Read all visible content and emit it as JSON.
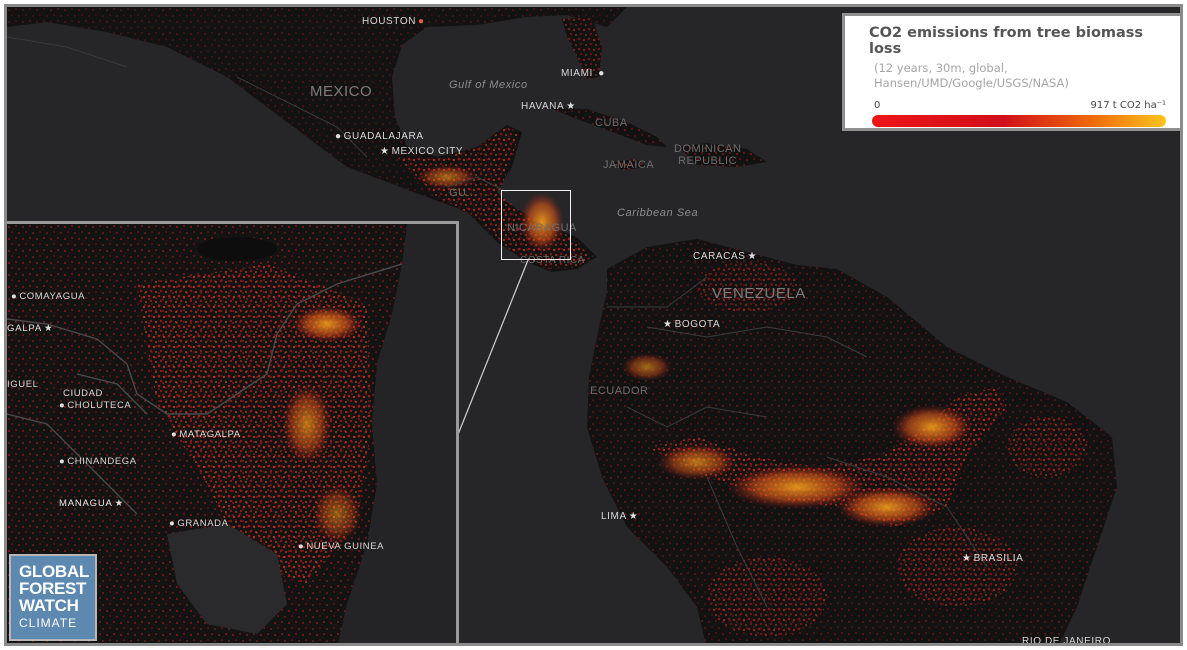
{
  "legend": {
    "title": "CO2 emissions from tree biomass loss",
    "subtitle_line1": "(12 years, 30m, global,",
    "subtitle_line2": "Hansen/UMD/Google/USGS/NASA)",
    "scale_min": "0",
    "scale_max": "917 t CO2 ha⁻¹",
    "gradient_colors": [
      "#ee1418",
      "#d0101a",
      "#ef6a0c",
      "#fbc41c"
    ]
  },
  "logo": {
    "line1": "GLOBAL",
    "line2": "FOREST",
    "line3": "WATCH",
    "line4": "CLIMATE",
    "color": "#5d88b0"
  },
  "map": {
    "background_color": "#262628",
    "land_color": "#121213",
    "countries": {
      "mexico": "MEXICO",
      "cuba": "CUBA",
      "jamaica": "JAMAICA",
      "dominican_republic_1": "DOMINICAN",
      "dominican_republic_2": "REPUBLIC",
      "nicaragua": "NICARAGUA",
      "costa_rica": "COSTA RICA",
      "venezuela": "VENEZUELA",
      "ecuador": "ECUADOR",
      "guatemala": "GU..."
    },
    "seas": {
      "gulf_of_mexico": "Gulf of Mexico",
      "caribbean_sea": "Caribbean Sea"
    },
    "cities": {
      "houston": "HOUSTON",
      "miami": "MIAMI",
      "havana": "HAVANA",
      "guadalajara": "GUADALAJARA",
      "mexico_city": "MEXICO CITY",
      "caracas": "CARACAS",
      "bogota": "BOGOTA",
      "lima": "LIMA",
      "brasilia": "BRASILIA",
      "rio": "RIO DE JANEIRO"
    }
  },
  "inset": {
    "cities": {
      "comayagua": "COMAYAGUA",
      "tegucigalpa": "GALPA",
      "miguel": "IGUEL",
      "ciudad_choluteca_1": "CIUDAD",
      "ciudad_choluteca_2": "CHOLUTECA",
      "matagalpa": "MATAGALPA",
      "chinandega": "CHINANDEGA",
      "managua": "MANAGUA",
      "granada": "GRANADA",
      "nueva_guinea": "NUEVA GUINEA"
    }
  }
}
